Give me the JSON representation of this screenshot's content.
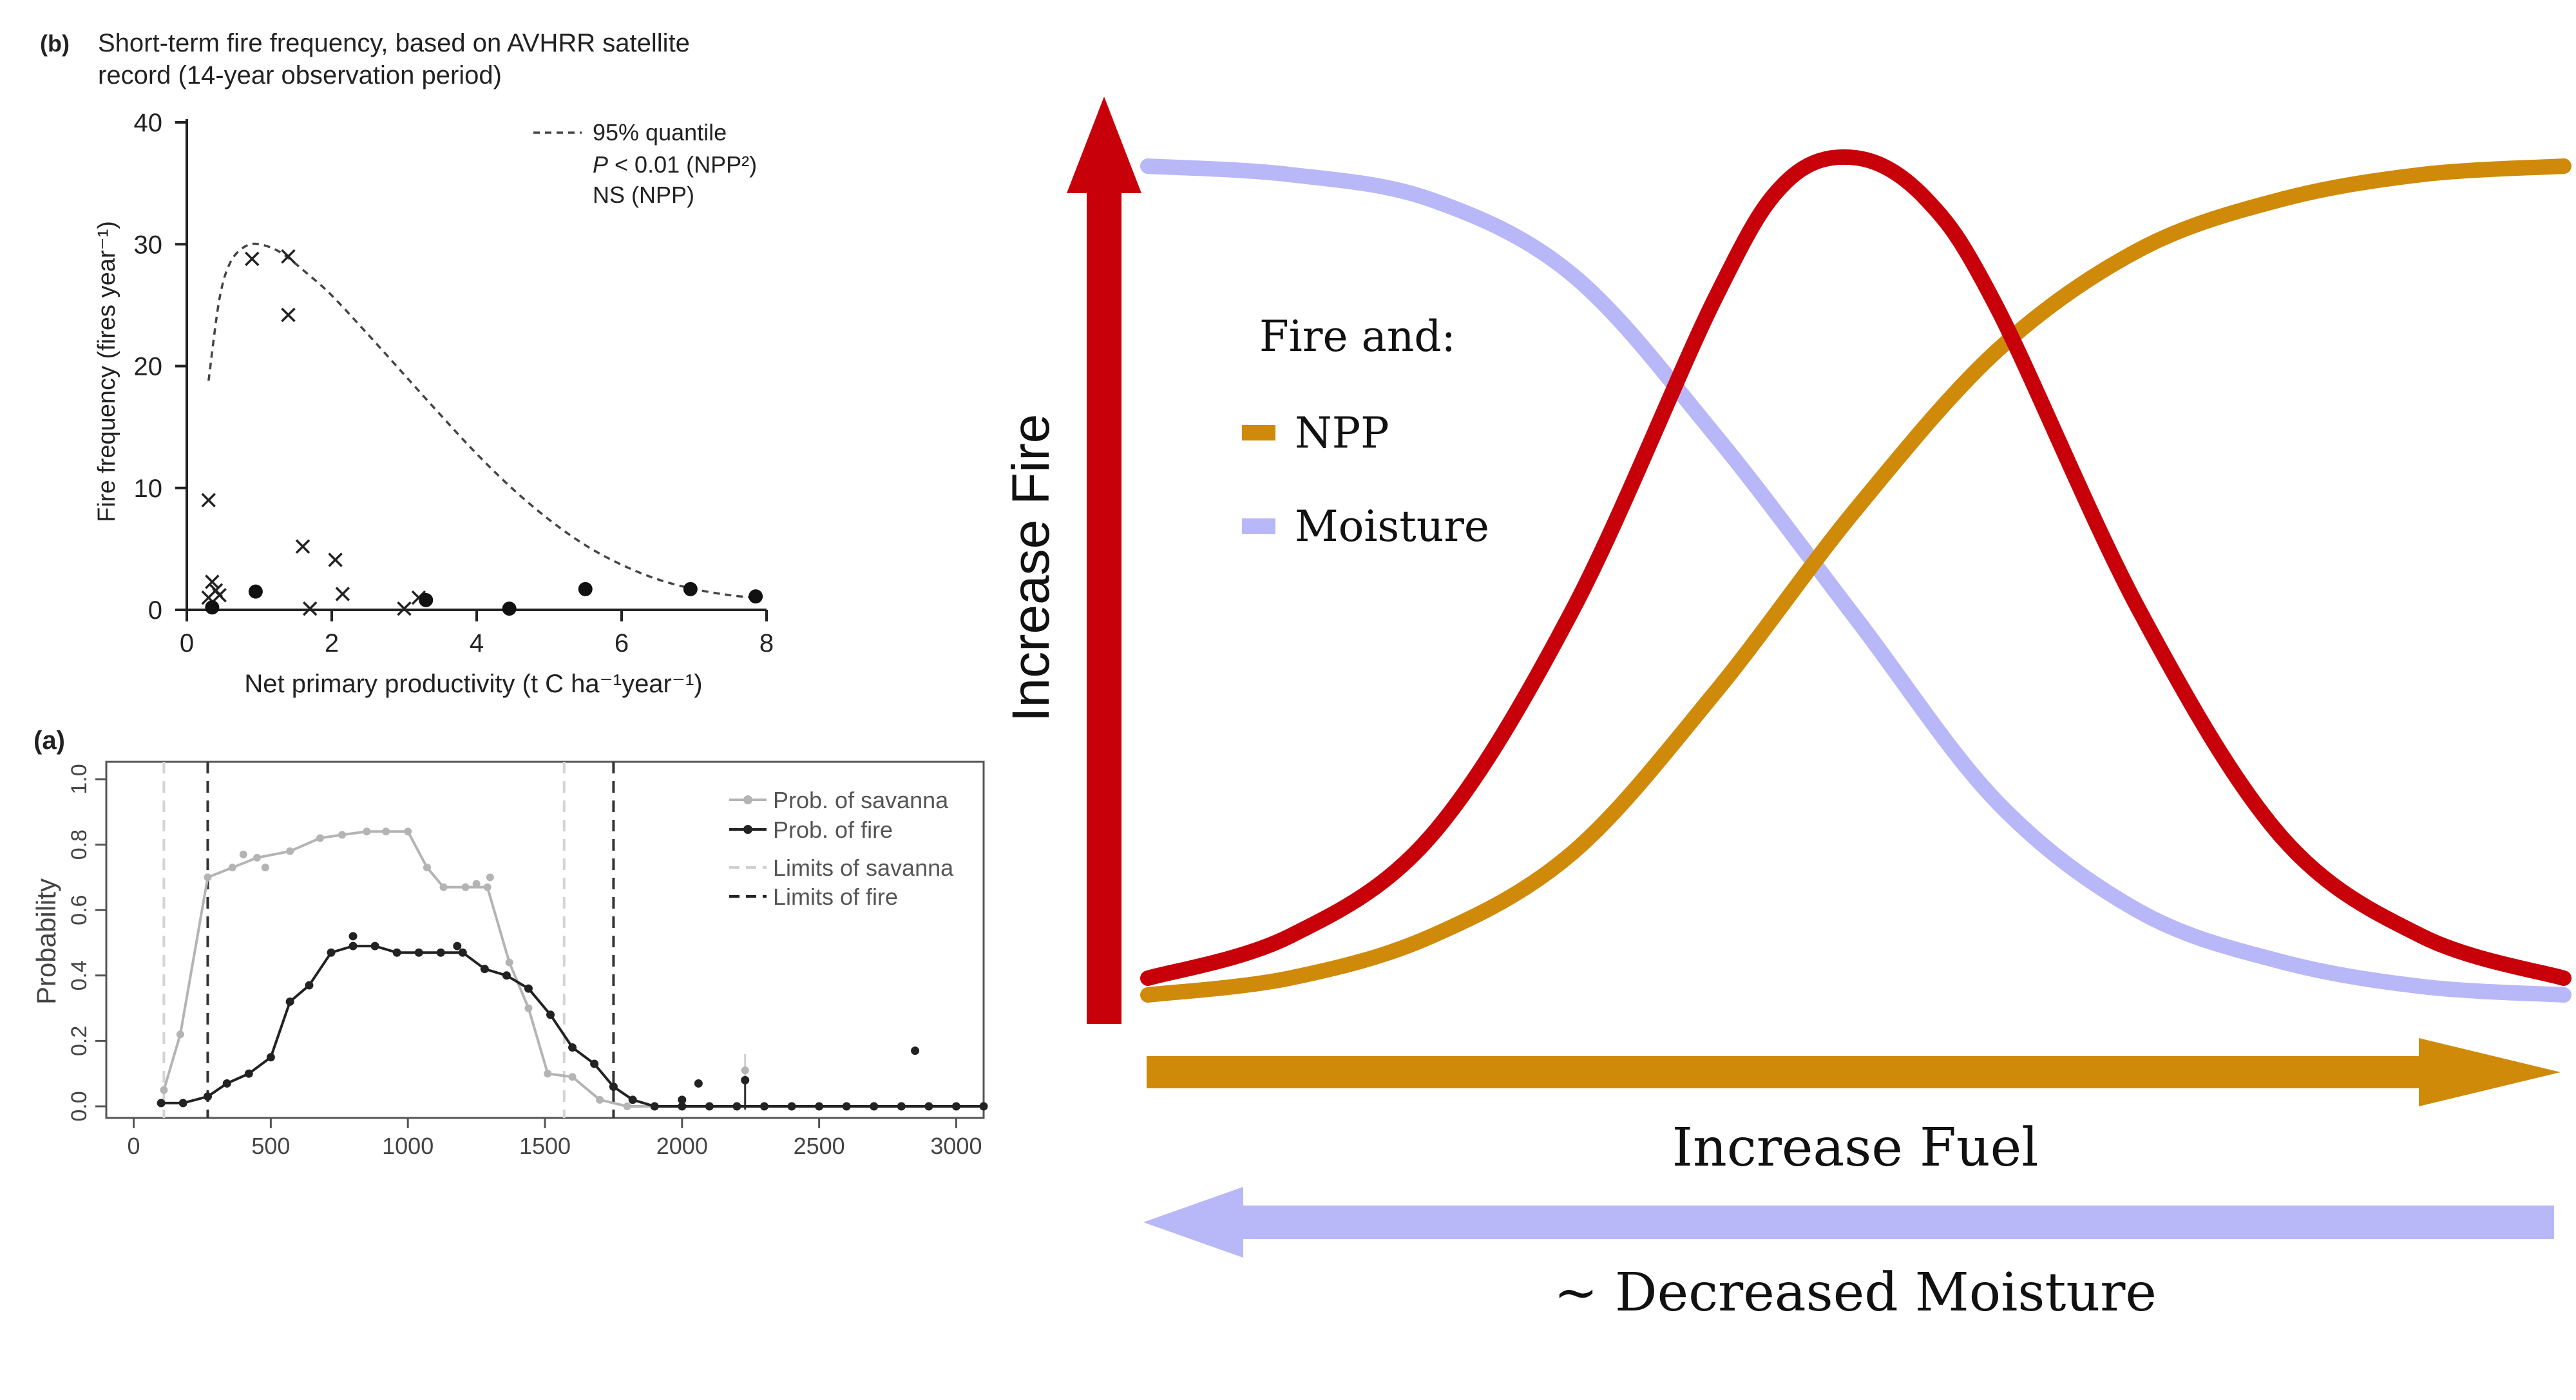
{
  "panel_b": {
    "letter": "(b)",
    "title_line1": "Short-term fire frequency, based on AVHRR satellite",
    "title_line2": "record (14-year observation period)",
    "ylabel": "Fire frequency (fires year⁻¹)",
    "xlabel": "Net primary productivity (t C ha⁻¹year⁻¹)",
    "legend": {
      "line1": "95% quantile",
      "line2_p": "P",
      "line2_rest": " < 0.01 (NPP²)",
      "line3": "NS (NPP)"
    }
  },
  "panel_a": {
    "letter": "(a)",
    "ylabel": "Probability",
    "legend": [
      "Prob. of savanna",
      "Prob. of fire",
      "Limits of savanna",
      "Limits of fire"
    ]
  },
  "schematic": {
    "yarrow_label": "Increase Fire",
    "legend_title": "Fire and:",
    "legend_items": [
      "NPP",
      "Moisture"
    ],
    "fuel_label": "Increase Fuel",
    "moisture_label": "~ Decreased Moisture"
  },
  "colors": {
    "fire": "#c8000a",
    "npp": "#d08a0a",
    "moisture": "#b8b8f8",
    "savanna": "#b4b4b4",
    "firegray": "#222222"
  },
  "chart_data": [
    {
      "type": "scatter",
      "id": "panel_b",
      "xlim": [
        0,
        8
      ],
      "ylim": [
        0,
        40
      ],
      "xticks": [
        0,
        2,
        4,
        6,
        8
      ],
      "yticks": [
        0,
        10,
        20,
        30,
        40
      ],
      "series": [
        {
          "marker": "x",
          "points": [
            [
              0.3,
              9
            ],
            [
              0.3,
              1
            ],
            [
              0.35,
              2.3
            ],
            [
              0.4,
              1.6
            ],
            [
              0.45,
              1.2
            ],
            [
              0.9,
              28.8
            ],
            [
              1.4,
              29
            ],
            [
              1.4,
              24.2
            ],
            [
              1.6,
              5.2
            ],
            [
              1.7,
              0.1
            ],
            [
              2.05,
              4.1
            ],
            [
              2.15,
              1.3
            ],
            [
              3.0,
              0.1
            ],
            [
              3.2,
              1.0
            ]
          ]
        },
        {
          "marker": "dot",
          "points": [
            [
              0.35,
              0.2
            ],
            [
              0.95,
              1.5
            ],
            [
              3.3,
              0.8
            ],
            [
              4.45,
              0.1
            ],
            [
              5.5,
              1.7
            ],
            [
              6.95,
              1.7
            ],
            [
              7.85,
              1.1
            ]
          ]
        }
      ],
      "quantile_curve": [
        [
          0.3,
          18.8
        ],
        [
          0.45,
          25.5
        ],
        [
          0.6,
          28.5
        ],
        [
          0.8,
          29.8
        ],
        [
          1.0,
          30.0
        ],
        [
          1.3,
          29.3
        ],
        [
          1.7,
          27.4
        ],
        [
          2.0,
          25.8
        ],
        [
          2.5,
          22.6
        ],
        [
          3.0,
          19.3
        ],
        [
          3.5,
          16.0
        ],
        [
          4.0,
          12.8
        ],
        [
          4.5,
          9.9
        ],
        [
          5.0,
          7.4
        ],
        [
          5.5,
          5.3
        ],
        [
          6.0,
          3.7
        ],
        [
          6.5,
          2.5
        ],
        [
          7.0,
          1.7
        ],
        [
          7.5,
          1.2
        ],
        [
          7.85,
          1.0
        ]
      ]
    },
    {
      "type": "line",
      "id": "panel_a",
      "xlim": [
        -100,
        3100
      ],
      "ylim": [
        -0.02,
        1.0
      ],
      "xticks": [
        0,
        500,
        1000,
        1500,
        2000,
        2500,
        3000
      ],
      "yticks": [
        0.0,
        0.2,
        0.4,
        0.6,
        0.8,
        1.0
      ],
      "savanna_limits": [
        110,
        1570
      ],
      "fire_limits": [
        270,
        1750
      ],
      "series": [
        {
          "name": "Prob. of savanna",
          "x": [
            110,
            170,
            270,
            360,
            450,
            570,
            680,
            760,
            850,
            920,
            1000,
            1070,
            1130,
            1210,
            1290,
            1370,
            1440,
            1510,
            1600,
            1700,
            1800,
            1900,
            2000,
            2100,
            2200,
            2300,
            2400,
            2500,
            2600,
            2700,
            2800,
            2900,
            3000,
            3100
          ],
          "y": [
            0.05,
            0.22,
            0.7,
            0.73,
            0.76,
            0.78,
            0.82,
            0.83,
            0.84,
            0.84,
            0.84,
            0.73,
            0.67,
            0.67,
            0.67,
            0.44,
            0.3,
            0.1,
            0.09,
            0.02,
            0.0,
            0.0,
            0.0,
            0.0,
            0.0,
            0.0,
            0.0,
            0.0,
            0.0,
            0.0,
            0.0,
            0.0,
            0.0,
            0.0
          ]
        },
        {
          "name": "Prob. of fire",
          "x": [
            100,
            180,
            270,
            340,
            420,
            500,
            570,
            640,
            720,
            800,
            880,
            960,
            1040,
            1120,
            1200,
            1280,
            1360,
            1440,
            1520,
            1600,
            1680,
            1750,
            1820,
            1900,
            2000,
            2100,
            2200,
            2300,
            2400,
            2500,
            2600,
            2700,
            2800,
            2900,
            3000,
            3100
          ],
          "y": [
            0.01,
            0.01,
            0.03,
            0.07,
            0.1,
            0.15,
            0.32,
            0.37,
            0.47,
            0.49,
            0.49,
            0.47,
            0.47,
            0.47,
            0.47,
            0.42,
            0.4,
            0.36,
            0.28,
            0.18,
            0.13,
            0.06,
            0.02,
            0.0,
            0.0,
            0.0,
            0.0,
            0.0,
            0.0,
            0.0,
            0.0,
            0.0,
            0.0,
            0.0,
            0.0,
            0.0
          ]
        }
      ],
      "points_fire": [
        [
          800,
          0.52
        ],
        [
          1180,
          0.49
        ],
        [
          2060,
          0.07
        ],
        [
          2230,
          0.08
        ],
        [
          2850,
          0.17
        ],
        [
          2000,
          0.02
        ]
      ],
      "points_savanna": [
        [
          400,
          0.77
        ],
        [
          480,
          0.73
        ],
        [
          1250,
          0.68
        ],
        [
          2230,
          0.11
        ],
        [
          1300,
          0.7
        ]
      ]
    },
    {
      "type": "line",
      "id": "schematic",
      "xlim": [
        0,
        1
      ],
      "ylim": [
        0,
        1
      ],
      "series": [
        {
          "name": "Fire",
          "x": [
            0.0,
            0.1,
            0.2,
            0.3,
            0.4,
            0.45,
            0.5,
            0.55,
            0.6,
            0.7,
            0.8,
            0.9,
            1.0
          ],
          "y": [
            0.02,
            0.07,
            0.19,
            0.46,
            0.83,
            0.97,
            1.0,
            0.95,
            0.82,
            0.46,
            0.19,
            0.07,
            0.02
          ]
        },
        {
          "name": "NPP",
          "x": [
            0.0,
            0.1,
            0.2,
            0.3,
            0.4,
            0.5,
            0.6,
            0.7,
            0.8,
            0.9,
            1.0
          ],
          "y": [
            0.0,
            0.02,
            0.07,
            0.17,
            0.36,
            0.58,
            0.77,
            0.89,
            0.95,
            0.98,
            0.99
          ]
        },
        {
          "name": "Moisture",
          "x": [
            0.0,
            0.1,
            0.2,
            0.3,
            0.4,
            0.5,
            0.6,
            0.7,
            0.8,
            0.9,
            1.0
          ],
          "y": [
            0.99,
            0.98,
            0.95,
            0.86,
            0.67,
            0.45,
            0.23,
            0.1,
            0.04,
            0.01,
            0.0
          ]
        }
      ]
    }
  ]
}
